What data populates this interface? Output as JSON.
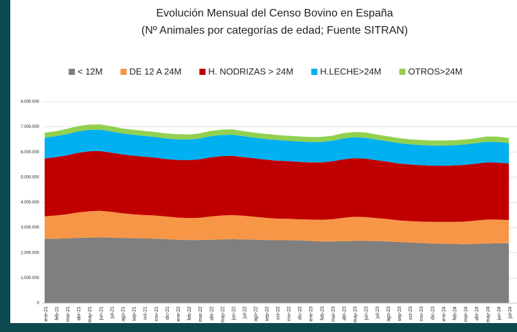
{
  "chart_data": {
    "type": "stacked_area",
    "title": "Evolución Mensual del Censo Bovino en España",
    "subtitle": "(Nº Animales por categorías de edad; Fuente SITRAN)",
    "categories": [
      "ene-21",
      "feb-21",
      "mar-21",
      "abr-21",
      "may-21",
      "jun-21",
      "jul-21",
      "ago-21",
      "sep-21",
      "oct-21",
      "nov-21",
      "dic-21",
      "ene-22",
      "feb-22",
      "mar-22",
      "abr-22",
      "may-22",
      "jun-22",
      "jul-22",
      "ago-22",
      "sep-22",
      "oct-22",
      "nov-22",
      "dic-22",
      "ene-23",
      "feb-23",
      "mar-23",
      "abr-23",
      "may-23",
      "jun-23",
      "jul-23",
      "ago-23",
      "sep-23",
      "oct-23",
      "nov-23",
      "dic-23",
      "ene-24",
      "feb-24",
      "mar-24",
      "abr-24",
      "may-24",
      "jun-24",
      "jul-24"
    ],
    "series": [
      {
        "name": "< 12M",
        "color": "#7f7f7f",
        "values": [
          2550000,
          2560000,
          2570000,
          2590000,
          2600000,
          2610000,
          2600000,
          2590000,
          2580000,
          2570000,
          2560000,
          2540000,
          2520000,
          2510000,
          2510000,
          2520000,
          2530000,
          2540000,
          2530000,
          2520000,
          2510000,
          2500000,
          2500000,
          2490000,
          2470000,
          2450000,
          2450000,
          2460000,
          2470000,
          2470000,
          2460000,
          2450000,
          2430000,
          2410000,
          2390000,
          2370000,
          2360000,
          2350000,
          2340000,
          2350000,
          2370000,
          2380000,
          2380000
        ]
      },
      {
        "name": "DE 12 A 24M",
        "color": "#f79646",
        "values": [
          900000,
          920000,
          960000,
          1010000,
          1050000,
          1060000,
          1030000,
          980000,
          950000,
          930000,
          920000,
          900000,
          880000,
          870000,
          880000,
          920000,
          950000,
          960000,
          940000,
          910000,
          880000,
          860000,
          850000,
          840000,
          850000,
          860000,
          880000,
          930000,
          960000,
          950000,
          920000,
          890000,
          860000,
          850000,
          850000,
          860000,
          870000,
          880000,
          900000,
          930000,
          950000,
          940000,
          920000
        ]
      },
      {
        "name": "H. NODRIZAS > 24M",
        "color": "#c00000",
        "values": [
          2300000,
          2320000,
          2340000,
          2370000,
          2380000,
          2370000,
          2350000,
          2340000,
          2330000,
          2320000,
          2300000,
          2280000,
          2290000,
          2300000,
          2320000,
          2350000,
          2360000,
          2350000,
          2330000,
          2320000,
          2310000,
          2300000,
          2290000,
          2280000,
          2270000,
          2280000,
          2300000,
          2320000,
          2330000,
          2320000,
          2300000,
          2280000,
          2260000,
          2250000,
          2240000,
          2230000,
          2230000,
          2240000,
          2250000,
          2260000,
          2270000,
          2260000,
          2250000
        ]
      },
      {
        "name": "H.LECHE>24M",
        "color": "#00b0f0",
        "values": [
          820000,
          830000,
          840000,
          850000,
          850000,
          850000,
          840000,
          830000,
          830000,
          820000,
          820000,
          820000,
          820000,
          820000,
          830000,
          840000,
          840000,
          840000,
          830000,
          820000,
          820000,
          820000,
          810000,
          810000,
          810000,
          810000,
          820000,
          830000,
          830000,
          830000,
          820000,
          810000,
          810000,
          800000,
          800000,
          800000,
          800000,
          800000,
          810000,
          810000,
          820000,
          820000,
          810000
        ]
      },
      {
        "name": "OTROS>24M",
        "color": "#92d050",
        "values": [
          200000,
          200000,
          210000,
          210000,
          210000,
          210000,
          210000,
          200000,
          200000,
          200000,
          200000,
          200000,
          200000,
          200000,
          200000,
          210000,
          210000,
          210000,
          200000,
          200000,
          200000,
          200000,
          200000,
          200000,
          200000,
          200000,
          200000,
          210000,
          210000,
          210000,
          200000,
          200000,
          200000,
          200000,
          200000,
          200000,
          200000,
          200000,
          200000,
          200000,
          210000,
          210000,
          200000
        ]
      }
    ],
    "ylim": [
      0,
      8000000
    ],
    "yticks": [
      0,
      {
        "value": 1000000,
        "label": "1.000.000"
      },
      {
        "value": 2000000,
        "label": "2.000.000"
      },
      {
        "value": 3000000,
        "label": "3.000.000"
      },
      {
        "value": 4000000,
        "label": "4.000.000"
      },
      {
        "value": 5000000,
        "label": "5.000.000"
      },
      {
        "value": 6000000,
        "label": "6.000.000"
      },
      {
        "value": 7000000,
        "label": "7.000.000"
      },
      {
        "value": 8000000,
        "label": "8.000.000"
      }
    ],
    "grid": true
  }
}
